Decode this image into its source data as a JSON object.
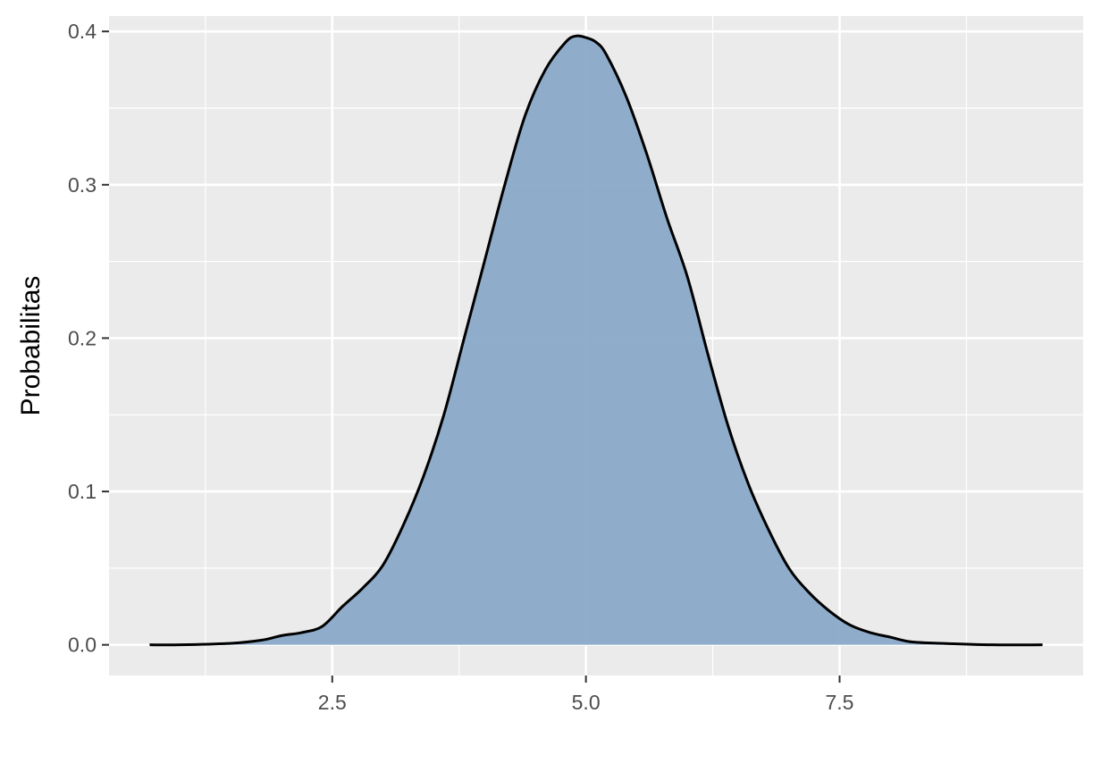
{
  "chart_data": {
    "type": "area",
    "title": "",
    "xlabel": "",
    "ylabel": "Probabilitas",
    "xlim": [
      0.3,
      9.9
    ],
    "ylim": [
      -0.02,
      0.41
    ],
    "x_ticks": [
      2.5,
      5.0,
      7.5
    ],
    "x_tick_labels": [
      "2.5",
      "5.0",
      "7.5"
    ],
    "x_minor_ticks": [
      1.25,
      3.75,
      6.25,
      8.75
    ],
    "y_ticks": [
      0.0,
      0.1,
      0.2,
      0.3,
      0.4
    ],
    "y_tick_labels": [
      "0.0",
      "0.1",
      "0.2",
      "0.3",
      "0.4"
    ],
    "y_minor_ticks": [
      0.05,
      0.15,
      0.25,
      0.35
    ],
    "grid": true,
    "legend": "none",
    "series": [
      {
        "x": [
          0.7,
          1.0,
          1.5,
          1.8,
          2.0,
          2.2,
          2.4,
          2.6,
          2.8,
          3.0,
          3.2,
          3.4,
          3.6,
          3.8,
          4.0,
          4.2,
          4.4,
          4.6,
          4.8,
          4.9,
          5.0,
          5.1,
          5.2,
          5.4,
          5.6,
          5.8,
          6.0,
          6.2,
          6.4,
          6.6,
          6.8,
          7.0,
          7.2,
          7.4,
          7.6,
          7.8,
          8.0,
          8.2,
          8.5,
          9.0,
          9.5
        ],
        "y": [
          0.0,
          0.0,
          0.001,
          0.003,
          0.006,
          0.008,
          0.012,
          0.025,
          0.037,
          0.052,
          0.078,
          0.11,
          0.15,
          0.2,
          0.25,
          0.3,
          0.345,
          0.375,
          0.393,
          0.397,
          0.396,
          0.393,
          0.385,
          0.357,
          0.32,
          0.278,
          0.24,
          0.19,
          0.143,
          0.105,
          0.075,
          0.05,
          0.034,
          0.022,
          0.013,
          0.008,
          0.005,
          0.002,
          0.001,
          0.0,
          0.0
        ]
      }
    ],
    "colors": {
      "panel": "#ebebeb",
      "grid": "#ffffff",
      "fill": "#8aa9c9",
      "line": "#000000"
    }
  }
}
